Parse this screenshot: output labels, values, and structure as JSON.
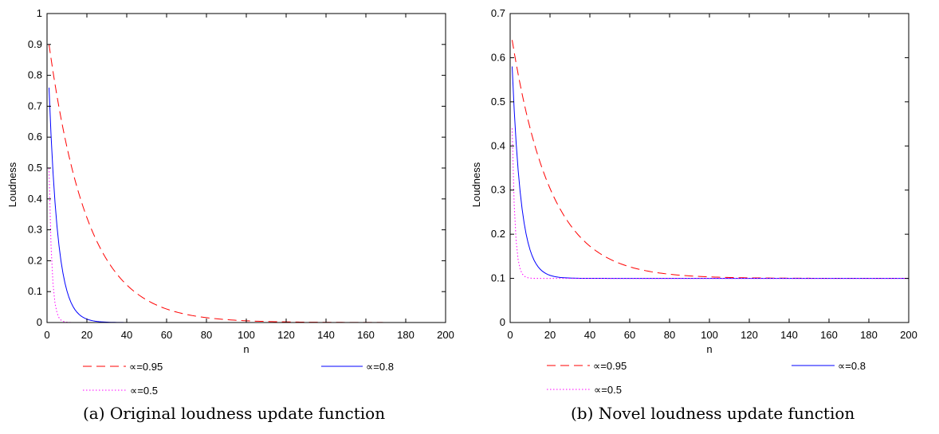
{
  "charts": [
    {
      "caption": "(a) Original loudness update function",
      "chart_data": {
        "type": "line",
        "title": "",
        "xlabel": "n",
        "ylabel": "Loudness",
        "xlim": [
          0,
          200
        ],
        "ylim": [
          0,
          1
        ],
        "xticks": [
          "0",
          "20",
          "40",
          "60",
          "80",
          "100",
          "120",
          "140",
          "160",
          "180",
          "200"
        ],
        "yticks": [
          "0",
          "0.1",
          "0.2",
          "0.3",
          "0.4",
          "0.5",
          "0.6",
          "0.7",
          "0.8",
          "0.9",
          "1"
        ],
        "grid": false,
        "legend_position": "below",
        "series": [
          {
            "name": "∝=0.95",
            "alpha": 0.95,
            "start": 0.9,
            "floor": 0.0,
            "color": "#ff0000",
            "style": "dashed"
          },
          {
            "name": "∝=0.8",
            "alpha": 0.8,
            "start": 0.76,
            "floor": 0.0,
            "color": "#0000ff",
            "style": "solid"
          },
          {
            "name": "∝=0.5",
            "alpha": 0.5,
            "start": 0.5,
            "floor": 0.0,
            "color": "#ff00ff",
            "style": "dotted"
          }
        ]
      }
    },
    {
      "caption": "(b) Novel loudness update function",
      "chart_data": {
        "type": "line",
        "title": "",
        "xlabel": "n",
        "ylabel": "Loudness",
        "xlim": [
          0,
          200
        ],
        "ylim": [
          0,
          0.7
        ],
        "xticks": [
          "0",
          "20",
          "40",
          "60",
          "80",
          "100",
          "120",
          "140",
          "160",
          "180",
          "200"
        ],
        "yticks": [
          "0",
          "0.1",
          "0.2",
          "0.3",
          "0.4",
          "0.5",
          "0.6",
          "0.7"
        ],
        "grid": false,
        "legend_position": "below",
        "series": [
          {
            "name": "∝=0.95",
            "alpha": 0.95,
            "start": 0.64,
            "floor": 0.1,
            "color": "#ff0000",
            "style": "dashed"
          },
          {
            "name": "∝=0.8",
            "alpha": 0.8,
            "start": 0.58,
            "floor": 0.1,
            "color": "#0000ff",
            "style": "solid"
          },
          {
            "name": "∝=0.5",
            "alpha": 0.5,
            "start": 0.44,
            "floor": 0.1,
            "color": "#ff00ff",
            "style": "dotted"
          }
        ]
      }
    }
  ]
}
